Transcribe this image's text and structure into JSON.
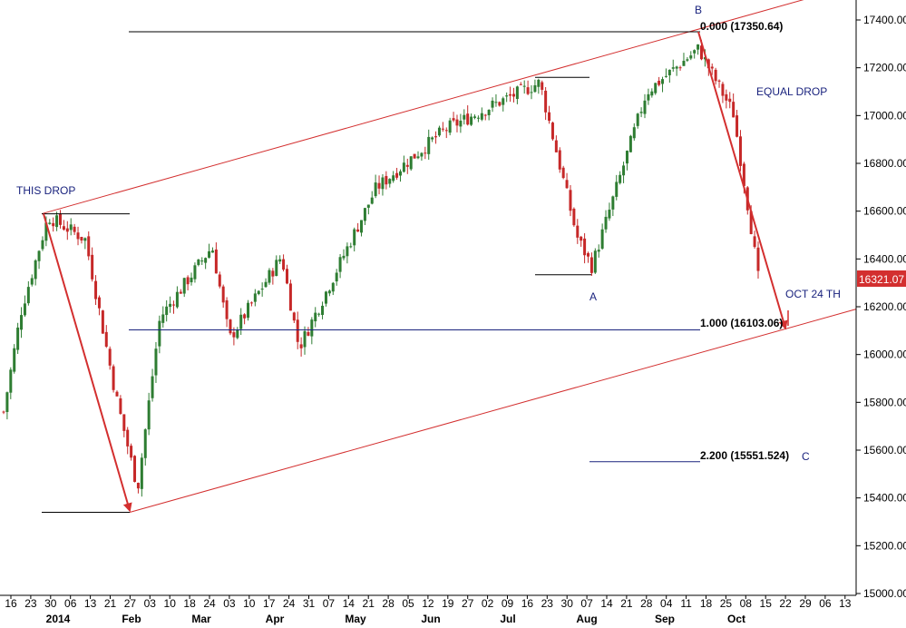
{
  "colors": {
    "up_candle": "#2e7d32",
    "down_candle": "#c62828",
    "channel": "#d32f2f",
    "arrow": "#d32f2f",
    "fib_line": "#1a237e",
    "level_line": "#000000",
    "annotation_text": "#1a237e",
    "price_tag_bg": "#d32f2f",
    "price_tag_text": "#ffffff"
  },
  "chart_data": {
    "type": "candlestick",
    "instrument_note": "",
    "y_axis": {
      "position": "right",
      "ylim": [
        15000,
        17500
      ],
      "ticks": [
        "15000.00",
        "15200.00",
        "15400.00",
        "15600.00",
        "15800.00",
        "16000.00",
        "16200.00",
        "16400.00",
        "16600.00",
        "16800.00",
        "17000.00",
        "17200.00",
        "17400.00"
      ]
    },
    "x_axis": {
      "day_labels": [
        "16",
        "23",
        "30",
        "06",
        "13",
        "21",
        "27",
        "03",
        "10",
        "18",
        "24",
        "03",
        "10",
        "17",
        "24",
        "31",
        "07",
        "14",
        "21",
        "28",
        "05",
        "12",
        "19",
        "27",
        "02",
        "09",
        "16",
        "23",
        "30",
        "07",
        "14",
        "21",
        "28",
        "04",
        "11",
        "18",
        "25",
        "08",
        "15",
        "22",
        "29",
        "06",
        "13"
      ],
      "month_labels": [
        "2014",
        "Feb",
        "Mar",
        "Apr",
        "May",
        "Jun",
        "Jul",
        "Aug",
        "Sep",
        "Oct"
      ]
    },
    "last_price": "16321.07",
    "key_points": [
      {
        "label": "THIS DROP",
        "date": "2014-01-02",
        "value": 16589
      },
      {
        "label": "",
        "date": "2014-02-03",
        "value": 15340
      },
      {
        "label": "A",
        "date": "2014-08-07",
        "value": 16334
      },
      {
        "label": "B",
        "date": "2014-09-19",
        "value": 17350.64
      }
    ],
    "fib_levels": [
      {
        "label": "0.000 (17350.64)",
        "value": 17350.64
      },
      {
        "label": "1.000 (16103.06)",
        "value": 16103.06
      },
      {
        "label": "2.200 (15551.524)",
        "value": 15551.524
      }
    ],
    "annotations": {
      "this_drop": "THIS DROP",
      "equal_drop": "EQUAL DROP",
      "point_a": "A",
      "point_b": "B",
      "point_c": "C",
      "target_date": "OCT 24 TH"
    },
    "candles_ohlc_summary": [
      {
        "date": "2013-12-13",
        "value": 15760
      },
      {
        "date": "2013-12-20",
        "value": 16180
      },
      {
        "date": "2013-12-31",
        "value": 16577
      },
      {
        "date": "2014-01-15",
        "value": 16481
      },
      {
        "date": "2014-01-27",
        "value": 15837
      },
      {
        "date": "2014-02-05",
        "value": 15440
      },
      {
        "date": "2014-02-14",
        "value": 16154
      },
      {
        "date": "2014-03-07",
        "value": 16452
      },
      {
        "date": "2014-03-14",
        "value": 16065
      },
      {
        "date": "2014-04-04",
        "value": 16412
      },
      {
        "date": "2014-04-11",
        "value": 16027
      },
      {
        "date": "2014-05-12",
        "value": 16695
      },
      {
        "date": "2014-06-09",
        "value": 16943
      },
      {
        "date": "2014-07-03",
        "value": 17068
      },
      {
        "date": "2014-07-17",
        "value": 17138
      },
      {
        "date": "2014-08-01",
        "value": 16493
      },
      {
        "date": "2014-08-07",
        "value": 16368
      },
      {
        "date": "2014-08-29",
        "value": 17098
      },
      {
        "date": "2014-09-19",
        "value": 17280
      },
      {
        "date": "2014-10-03",
        "value": 17009
      },
      {
        "date": "2014-10-10",
        "value": 16544
      },
      {
        "date": "2014-10-13",
        "value": 16321
      }
    ]
  }
}
